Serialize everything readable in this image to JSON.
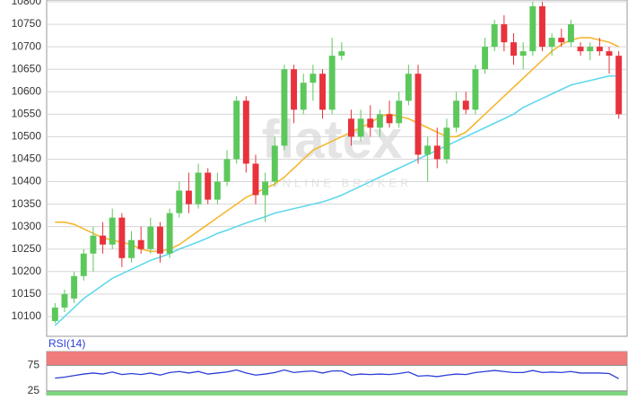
{
  "chart_data": [
    {
      "type": "candlestick",
      "watermark": "flatex",
      "watermark_sub": "ONLINE BROKER",
      "up_color": "#5cc85c",
      "down_color": "#e8323c",
      "open": [
        10090,
        10120,
        10140,
        10190,
        10240,
        10280,
        10260,
        10320,
        10230,
        10270,
        10250,
        10300,
        10240,
        10330,
        10380,
        10350,
        10420,
        10360,
        10400,
        10450,
        10580,
        10440,
        10370,
        10400,
        10480,
        10650,
        10560,
        10620,
        10640,
        10560,
        10680,
        10540,
        10500,
        10540,
        10520,
        10550,
        10530,
        10580,
        10640,
        10460,
        10480,
        10450,
        10520,
        10580,
        10560,
        10650,
        10700,
        10750,
        10710,
        10680,
        10690,
        10790,
        10700,
        10720,
        10710,
        10700,
        10690,
        10700,
        10690,
        10680
      ],
      "high": [
        10130,
        10160,
        10200,
        10250,
        10300,
        10310,
        10340,
        10330,
        10290,
        10300,
        10320,
        10310,
        10340,
        10400,
        10420,
        10440,
        10430,
        10420,
        10470,
        10590,
        10590,
        10460,
        10420,
        10500,
        10660,
        10660,
        10640,
        10660,
        10650,
        10720,
        10710,
        10560,
        10560,
        10570,
        10560,
        10580,
        10600,
        10660,
        10660,
        10500,
        10520,
        10540,
        10600,
        10600,
        10660,
        10720,
        10760,
        10770,
        10730,
        10710,
        10800,
        10800,
        10730,
        10740,
        10760,
        10710,
        10710,
        10720,
        10700,
        10690
      ],
      "low": [
        10085,
        10110,
        10130,
        10180,
        10200,
        10240,
        10250,
        10210,
        10220,
        10240,
        10240,
        10220,
        10230,
        10320,
        10330,
        10340,
        10350,
        10350,
        10390,
        10440,
        10420,
        10350,
        10310,
        10390,
        10470,
        10530,
        10550,
        10580,
        10540,
        10550,
        10670,
        10480,
        10490,
        10500,
        10500,
        10520,
        10520,
        10570,
        10440,
        10400,
        10430,
        10440,
        10510,
        10550,
        10550,
        10640,
        10690,
        10690,
        10660,
        10650,
        10680,
        10690,
        10680,
        10700,
        10700,
        10680,
        10670,
        10680,
        10640,
        10540
      ],
      "close": [
        10120,
        10150,
        10190,
        10240,
        10280,
        10260,
        10320,
        10230,
        10270,
        10250,
        10300,
        10240,
        10330,
        10380,
        10350,
        10420,
        10360,
        10400,
        10450,
        10580,
        10440,
        10370,
        10400,
        10480,
        10650,
        10560,
        10620,
        10640,
        10560,
        10680,
        10690,
        10500,
        10540,
        10520,
        10550,
        10530,
        10580,
        10640,
        10460,
        10480,
        10450,
        10520,
        10580,
        10560,
        10650,
        10700,
        10750,
        10710,
        10680,
        10690,
        10790,
        10700,
        10720,
        10710,
        10750,
        10690,
        10700,
        10690,
        10680,
        10550
      ],
      "moving_averages": [
        {
          "color": "#f5b731",
          "values": [
            10310,
            10310,
            10305,
            10295,
            10285,
            10275,
            10270,
            10265,
            10260,
            10250,
            10245,
            10245,
            10250,
            10260,
            10275,
            10290,
            10305,
            10320,
            10335,
            10350,
            10365,
            10375,
            10385,
            10395,
            10410,
            10430,
            10450,
            10470,
            10480,
            10490,
            10500,
            10510,
            10520,
            10530,
            10545,
            10550,
            10545,
            10540,
            10530,
            10520,
            10510,
            10500,
            10500,
            10510,
            10530,
            10550,
            10570,
            10590,
            10610,
            10630,
            10650,
            10670,
            10690,
            10705,
            10715,
            10720,
            10720,
            10715,
            10710,
            10700
          ]
        },
        {
          "color": "#5fd8ec",
          "values": [
            10080,
            10100,
            10120,
            10140,
            10155,
            10170,
            10185,
            10195,
            10205,
            10215,
            10225,
            10232,
            10240,
            10250,
            10258,
            10266,
            10275,
            10285,
            10292,
            10300,
            10308,
            10315,
            10322,
            10330,
            10335,
            10340,
            10345,
            10350,
            10355,
            10362,
            10370,
            10380,
            10390,
            10400,
            10410,
            10420,
            10430,
            10440,
            10450,
            10460,
            10470,
            10480,
            10490,
            10500,
            10510,
            10520,
            10530,
            10540,
            10550,
            10565,
            10575,
            10585,
            10595,
            10605,
            10615,
            10620,
            10625,
            10630,
            10635,
            10635
          ]
        }
      ],
      "ylim": [
        10056,
        10804
      ],
      "yticks": [
        10100,
        10150,
        10200,
        10250,
        10300,
        10350,
        10400,
        10450,
        10500,
        10550,
        10600,
        10650,
        10700,
        10750,
        10800
      ],
      "grid": true
    },
    {
      "type": "line",
      "title": "RSI(14)",
      "color": "#2b3fd6",
      "band_high_color": "#f07b7b",
      "band_low_color": "#7ed67e",
      "values": [
        50,
        52,
        55,
        58,
        60,
        58,
        62,
        57,
        59,
        57,
        60,
        56,
        61,
        63,
        60,
        63,
        58,
        60,
        62,
        66,
        60,
        56,
        58,
        61,
        66,
        61,
        63,
        64,
        60,
        64,
        64,
        56,
        58,
        57,
        58,
        57,
        59,
        62,
        54,
        55,
        53,
        56,
        58,
        57,
        61,
        63,
        65,
        63,
        61,
        61,
        65,
        61,
        62,
        61,
        63,
        60,
        60,
        60,
        59,
        49
      ],
      "ylim": [
        16,
        102
      ],
      "yticks": [
        25,
        75
      ]
    }
  ]
}
